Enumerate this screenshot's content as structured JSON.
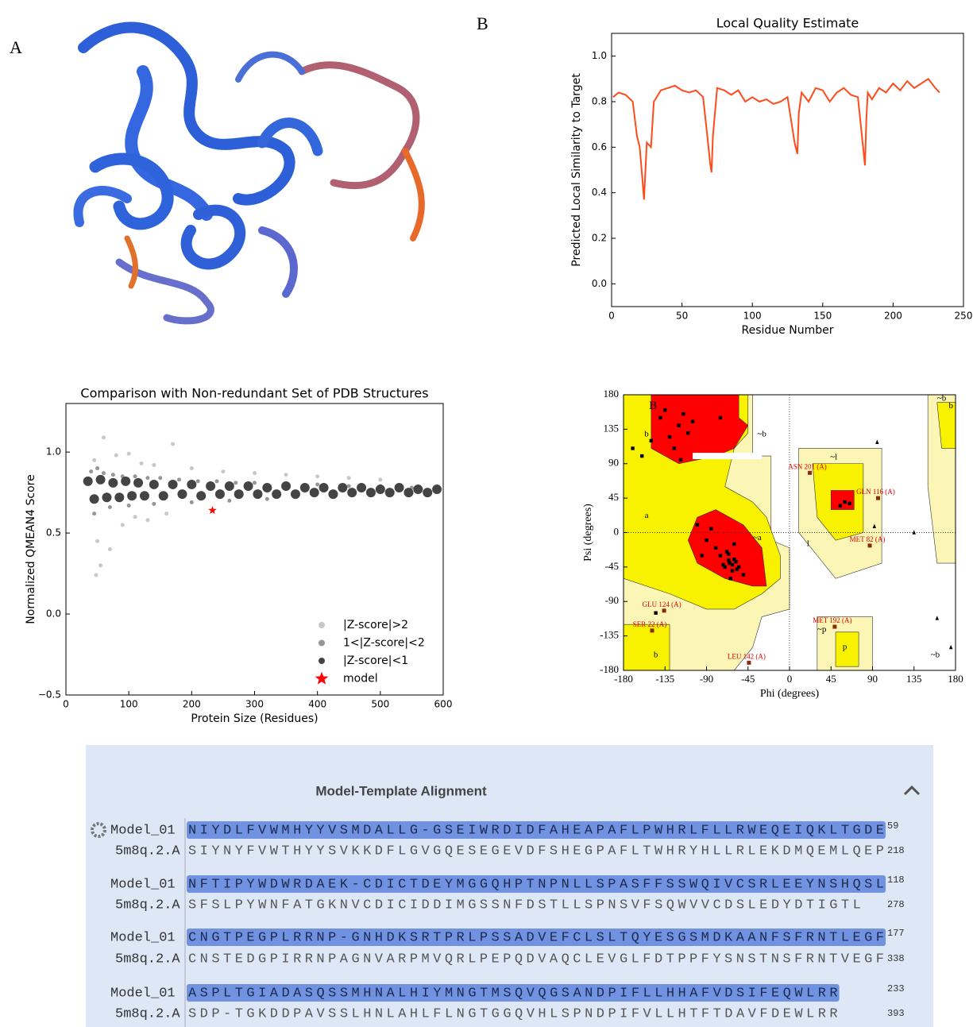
{
  "panel_labels": [
    "A",
    "B"
  ],
  "chart_data": [
    {
      "type": "line",
      "title": "Local Quality Estimate",
      "xlabel": "Residue Number",
      "ylabel": "Predicted Local Similarity to Target",
      "xlim": [
        0,
        250
      ],
      "xticks": [
        0,
        50,
        100,
        150,
        200,
        250
      ],
      "ylim": [
        -0.1,
        1.1
      ],
      "yticks": [
        {
          "value": 0,
          "label": "0.0"
        },
        {
          "value": 0.2,
          "label": "0.2"
        },
        {
          "value": 0.4,
          "label": "0.4"
        },
        {
          "value": 0.6,
          "label": "0.6"
        },
        {
          "value": 0.8,
          "label": "0.8"
        },
        {
          "value": 1,
          "label": "1.0"
        }
      ],
      "grid": false,
      "x": [
        1,
        5,
        10,
        15,
        18,
        20,
        22,
        23,
        25,
        28,
        30,
        35,
        40,
        45,
        50,
        55,
        60,
        65,
        68,
        70,
        71,
        72,
        75,
        80,
        85,
        90,
        95,
        100,
        105,
        110,
        115,
        120,
        125,
        130,
        132,
        133,
        135,
        140,
        145,
        150,
        155,
        160,
        165,
        170,
        175,
        180,
        181,
        182,
        185,
        190,
        195,
        200,
        205,
        210,
        215,
        220,
        225,
        230,
        233
      ],
      "series": [
        {
          "color": "#ff4a1c",
          "values": [
            0.82,
            0.84,
            0.83,
            0.8,
            0.65,
            0.6,
            0.45,
            0.37,
            0.62,
            0.6,
            0.8,
            0.85,
            0.86,
            0.87,
            0.85,
            0.84,
            0.85,
            0.82,
            0.65,
            0.53,
            0.49,
            0.65,
            0.86,
            0.85,
            0.83,
            0.85,
            0.8,
            0.82,
            0.8,
            0.81,
            0.79,
            0.8,
            0.82,
            0.62,
            0.57,
            0.75,
            0.84,
            0.8,
            0.86,
            0.85,
            0.8,
            0.84,
            0.86,
            0.83,
            0.82,
            0.52,
            0.72,
            0.84,
            0.81,
            0.86,
            0.84,
            0.88,
            0.85,
            0.89,
            0.86,
            0.88,
            0.9,
            0.86,
            0.84
          ]
        }
      ]
    },
    {
      "type": "scatter",
      "title": "Comparison with Non-redundant Set of PDB Structures",
      "xlabel": "Protein Size (Residues)",
      "ylabel": "Normalized QMEAN4 Score",
      "xlim": [
        0,
        600
      ],
      "xticks": [
        0,
        100,
        200,
        300,
        400,
        500,
        600
      ],
      "ylim": [
        -0.5,
        1.3
      ],
      "yticks": [
        {
          "value": -0.5,
          "label": "−0.5"
        },
        {
          "value": 0,
          "label": "0.0"
        },
        {
          "value": 0.5,
          "label": "0.5"
        },
        {
          "value": 1,
          "label": "1.0"
        }
      ],
      "legend": "lower right",
      "series": [
        {
          "name": "|Z-score|>2",
          "color": "#c8c8c8",
          "marker": "circle",
          "x": [
            45,
            60,
            80,
            100,
            120,
            140,
            170,
            200,
            250,
            300,
            350,
            400,
            450,
            500,
            50,
            70,
            90,
            110,
            48,
            55,
            130,
            160
          ],
          "values": [
            0.95,
            1.09,
            0.98,
            0.99,
            0.93,
            0.92,
            1.05,
            0.9,
            0.88,
            0.87,
            0.86,
            0.85,
            0.84,
            0.83,
            0.45,
            0.4,
            0.55,
            0.6,
            0.24,
            0.3,
            0.58,
            0.62
          ]
        },
        {
          "name": "1<|Z-score|<2",
          "color": "#969696",
          "marker": "circle",
          "x": [
            40,
            50,
            60,
            75,
            90,
            110,
            130,
            150,
            180,
            210,
            240,
            270,
            300,
            350,
            400,
            450,
            500,
            550,
            45,
            70,
            100,
            140,
            200,
            260,
            320
          ],
          "values": [
            0.88,
            0.9,
            0.87,
            0.86,
            0.85,
            0.85,
            0.84,
            0.84,
            0.83,
            0.82,
            0.82,
            0.81,
            0.81,
            0.8,
            0.8,
            0.79,
            0.79,
            0.78,
            0.62,
            0.66,
            0.67,
            0.68,
            0.69,
            0.7,
            0.71
          ]
        },
        {
          "name": "|Z-score|<1",
          "color": "#444444",
          "marker": "circle",
          "x": [
            35,
            45,
            55,
            65,
            75,
            85,
            95,
            105,
            115,
            125,
            140,
            155,
            170,
            185,
            200,
            215,
            230,
            245,
            260,
            275,
            290,
            305,
            320,
            335,
            350,
            365,
            380,
            395,
            410,
            425,
            440,
            455,
            470,
            485,
            500,
            515,
            530,
            545,
            560,
            575,
            590
          ],
          "values": [
            0.82,
            0.71,
            0.83,
            0.72,
            0.81,
            0.72,
            0.82,
            0.73,
            0.81,
            0.73,
            0.8,
            0.73,
            0.8,
            0.74,
            0.8,
            0.73,
            0.79,
            0.74,
            0.79,
            0.74,
            0.79,
            0.74,
            0.78,
            0.74,
            0.79,
            0.74,
            0.78,
            0.75,
            0.78,
            0.74,
            0.78,
            0.75,
            0.78,
            0.75,
            0.77,
            0.75,
            0.78,
            0.75,
            0.77,
            0.75,
            0.77
          ]
        },
        {
          "name": "model",
          "color": "#ff0000",
          "marker": "star",
          "x": [
            233
          ],
          "values": [
            0.64
          ]
        }
      ]
    },
    {
      "type": "ramachandran",
      "xlabel": "Phi (degrees)",
      "ylabel": "Psi (degrees)",
      "xlim": [
        -180,
        180
      ],
      "xticks": [
        -180,
        -135,
        -90,
        -45,
        0,
        45,
        90,
        135,
        180
      ],
      "ylim": [
        -180,
        180
      ],
      "yticks": [
        -180,
        -135,
        -90,
        -45,
        0,
        45,
        90,
        135,
        180
      ],
      "region_labels": [
        "B",
        "b",
        "a",
        "~b",
        "~a",
        "~l",
        "l",
        "~p",
        "p",
        "b",
        "~b",
        "~b",
        "b"
      ],
      "series": [
        {
          "color": "#000000",
          "marker": "square",
          "x": [
            -65,
            -60,
            -70,
            -75,
            -55,
            -62,
            -68,
            -80,
            -58,
            -72,
            -66,
            -90,
            -85,
            -100,
            -50,
            -64,
            -60,
            -95,
            -110,
            -120,
            -130,
            -140,
            -115,
            -125,
            -150,
            -105,
            -135,
            -160,
            -118,
            -75,
            -145,
            60,
            55,
            65,
            -170,
            -62,
            -57,
            -66
          ],
          "values": [
            -40,
            -35,
            -45,
            -30,
            -45,
            -50,
            -25,
            -20,
            -38,
            -42,
            -28,
            -10,
            5,
            10,
            -55,
            -60,
            -15,
            -30,
            130,
            140,
            125,
            150,
            155,
            110,
            120,
            145,
            160,
            100,
            95,
            150,
            -105,
            40,
            35,
            38,
            110,
            -42,
            -48,
            -36
          ]
        },
        {
          "color": "#000000",
          "marker": "triangle",
          "x": [
            95,
            92,
            135,
            160,
            175
          ],
          "values": [
            118,
            8,
            0,
            -112,
            -150
          ]
        }
      ],
      "labeled_points": [
        {
          "label": "ASN 201 (A)",
          "x": 22,
          "y": 78
        },
        {
          "label": "GLN 116 (A)",
          "x": 96,
          "y": 45
        },
        {
          "label": "MET 82 (A)",
          "x": 87,
          "y": -17
        },
        {
          "label": "GLU 124 (A)",
          "x": -136,
          "y": -102
        },
        {
          "label": "SER 22 (A)",
          "x": -149,
          "y": -128
        },
        {
          "label": "MET 192 (A)",
          "x": 49,
          "y": -123
        },
        {
          "label": "LEU 142 (A)",
          "x": -44,
          "y": -170
        }
      ]
    }
  ],
  "alignment": {
    "title": "Model-Template Alignment",
    "rows": [
      {
        "name": "Model_01",
        "sequence": "NIYDLFVWMHYYVSMDALLG-GSEIWRDIDFAHEAPAFLPWHRLFLLRWEQEIQKLTGDE",
        "end": 59
      },
      {
        "name": "5m8q.2.A",
        "sequence": "SIYNYFVWTHYYSVKKDFLGVGQESEGEVDFSHEGPAFLTWHRYHLLRLEKDMQEMLQEP",
        "end": 218
      },
      {
        "name": "Model_01",
        "sequence": "NFTIPYWDWRDAEK-CDICTDEYMGGQHPTNPNLLSPASFFSSWQIVCSRLEEYNSHQSL",
        "end": 118
      },
      {
        "name": "5m8q.2.A",
        "sequence": "SFSLPYWNFATGKNVCDICIDDIMGSSNFDSTLLSPNSVFSQWVVCDSLEDYDTIGTL",
        "end": 278
      },
      {
        "name": "Model_01",
        "sequence": "CNGTPEGPLRRNP-GNHDKSRTPRLPSSADVEFCLSLTQYESGSMDKAANFSFRNTLEGF",
        "end": 177
      },
      {
        "name": "5m8q.2.A",
        "sequence": "CNSTEDGPIRRNPAGNVARPMVQRLPEPQDVAQCLEVGLFDTPPFYSNSTNSFRNTVEGF",
        "end": 338
      },
      {
        "name": "Model_01",
        "sequence": "ASPLTGIADASQSSMHNALHIYMNGTMSQVQGSANDPIFLLHHAFVDSIFEQWLRR",
        "end": 233
      },
      {
        "name": "5m8q.2.A",
        "sequence": "SDP-TGKDDPAVSSLHNLAHLFLNGTGGQVHLSPNDPIFVLLHTFTDAVFDEWLRR",
        "end": 393
      }
    ]
  }
}
